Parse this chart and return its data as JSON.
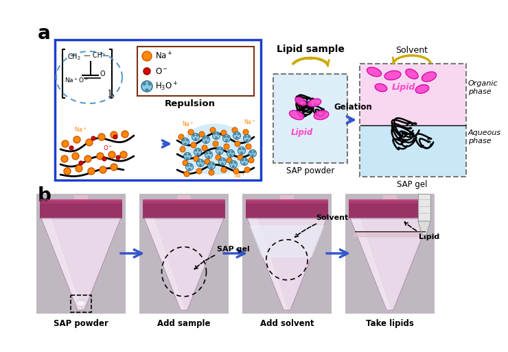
{
  "fig_width": 7.4,
  "fig_height": 5.14,
  "dpi": 100,
  "bg_color": "#ffffff",
  "label_a": "a",
  "label_b": "b",
  "label_fontsize": 20,
  "label_fontweight": "bold",
  "panel_a_box_color": "#1a3fcc",
  "legend_box_color": "#7a3010",
  "na_color": "#ff8800",
  "o_color": "#dd0000",
  "h3o_color": "#226622",
  "lipid_color": "#ff44cc",
  "aqueous_color": "#c8e8f8",
  "arrow_blue": "#3355cc",
  "arrow_yellow": "#ccaa00",
  "solvent_text": "Solvent",
  "lipid_sample_text": "Lipid sample",
  "gelation_text": "Gelation",
  "repulsion_text": "Repulsion",
  "sap_powder_text": "SAP powder",
  "sap_gel_text": "SAP gel",
  "organic_text": "Organic\nphase",
  "aqueous_text": "Aqueous\nphase",
  "lipid_text": "Lipid",
  "b_labels": [
    "SAP powder",
    "Add sample",
    "Add solvent",
    "Take lipids"
  ],
  "tube_body_color": "#e8d8e8",
  "tube_cap_color": "#993366",
  "tube_bg_color": "#b8b0b8",
  "tube_light_color": "#ecdde8"
}
